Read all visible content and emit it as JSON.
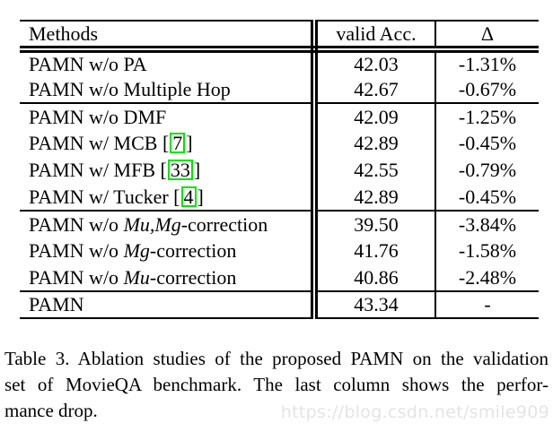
{
  "colors": {
    "background": "#ffffff",
    "text": "#000000",
    "rule": "#000000",
    "citation_box": "#00e400",
    "watermark": "#e4e4e4"
  },
  "table": {
    "headers": [
      "Methods",
      "valid Acc.",
      "Δ"
    ],
    "rows": [
      {
        "method": [
          {
            "t": "PAMN w/o PA"
          }
        ],
        "acc": "42.03",
        "delta": "-1.31%"
      },
      {
        "method": [
          {
            "t": "PAMN w/o Multiple Hop"
          }
        ],
        "acc": "42.67",
        "delta": "-0.67%"
      },
      {
        "method": [
          {
            "t": "PAMN w/o DMF"
          }
        ],
        "acc": "42.09",
        "delta": "-1.25%",
        "group_start": true
      },
      {
        "method": [
          {
            "t": "PAMN w/ MCB ["
          },
          {
            "t": "7",
            "cite": true
          },
          {
            "t": "]"
          }
        ],
        "acc": "42.89",
        "delta": "-0.45%"
      },
      {
        "method": [
          {
            "t": "PAMN w/ MFB ["
          },
          {
            "t": "33",
            "cite": true
          },
          {
            "t": "]"
          }
        ],
        "acc": "42.55",
        "delta": "-0.79%"
      },
      {
        "method": [
          {
            "t": "PAMN w/ Tucker ["
          },
          {
            "t": "4",
            "cite": true
          },
          {
            "t": "]"
          }
        ],
        "acc": "42.89",
        "delta": "-0.45%"
      },
      {
        "method": [
          {
            "t": "PAMN w/o "
          },
          {
            "t": "Mu,Mg",
            "italic": true
          },
          {
            "t": "-correction"
          }
        ],
        "acc": "39.50",
        "delta": "-3.84%",
        "group_start": true
      },
      {
        "method": [
          {
            "t": "PAMN w/o "
          },
          {
            "t": "Mg",
            "italic": true
          },
          {
            "t": "-correction"
          }
        ],
        "acc": "41.76",
        "delta": "-1.58%"
      },
      {
        "method": [
          {
            "t": "PAMN w/o "
          },
          {
            "t": "Mu",
            "italic": true
          },
          {
            "t": "-correction"
          }
        ],
        "acc": "40.86",
        "delta": "-2.48%"
      },
      {
        "method": [
          {
            "t": "PAMN"
          }
        ],
        "acc": "43.34",
        "acc_bold": true,
        "delta": "-",
        "group_start": true
      }
    ]
  },
  "caption": {
    "lines": [
      "Table 3. Ablation studies of the proposed PAMN on the validation",
      "set of MovieQA benchmark.  The last column shows the perfor-",
      "mance drop."
    ],
    "full_text": "Table 3. Ablation studies of the proposed PAMN on the validation set of MovieQA benchmark. The last column shows the performance drop."
  },
  "watermark": {
    "text": "https://blog.csdn.net/smile909"
  }
}
